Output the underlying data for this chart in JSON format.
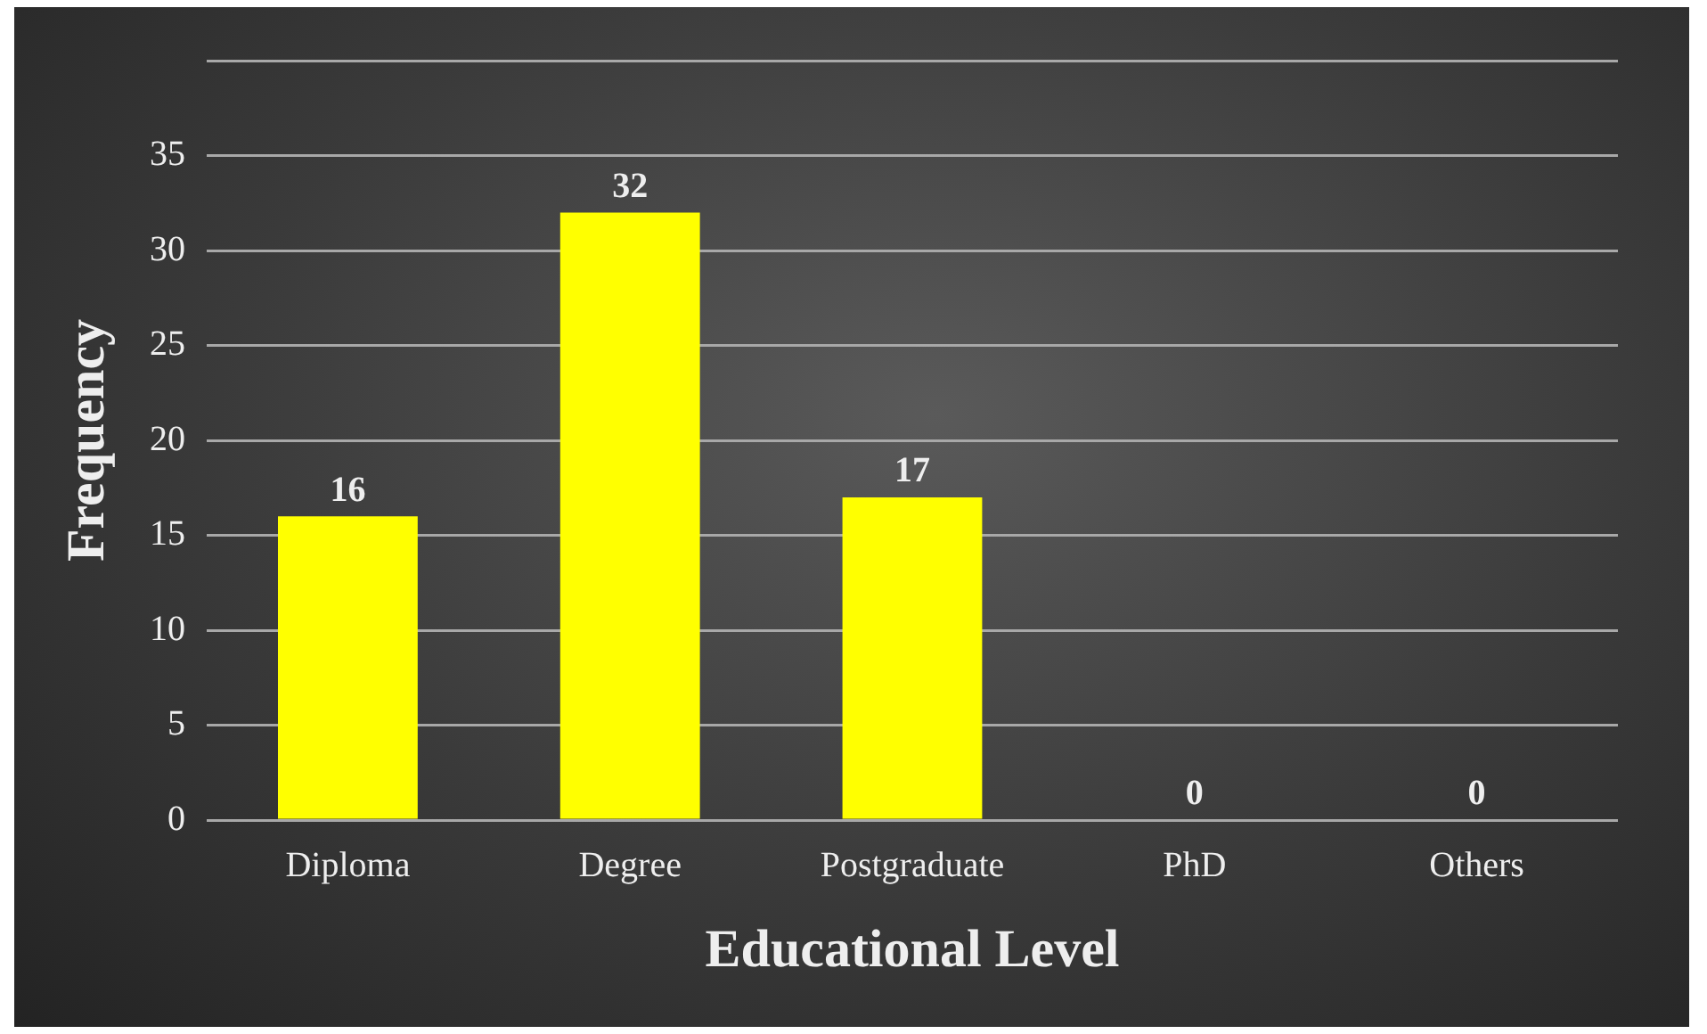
{
  "chart_data": {
    "type": "bar",
    "xlabel": "Educational Level",
    "ylabel": "Frequency",
    "categories": [
      "Diploma",
      "Degree",
      "Postgraduate",
      "PhD",
      "Others"
    ],
    "values": [
      16,
      32,
      17,
      0,
      0
    ],
    "color": "#ffff00",
    "ylim": [
      0,
      40
    ],
    "yticks": [
      0,
      5,
      10,
      15,
      20,
      25,
      30,
      35,
      {
        "value": 40,
        "label": null
      }
    ],
    "grid": "y",
    "legend": false,
    "data_labels": true
  }
}
